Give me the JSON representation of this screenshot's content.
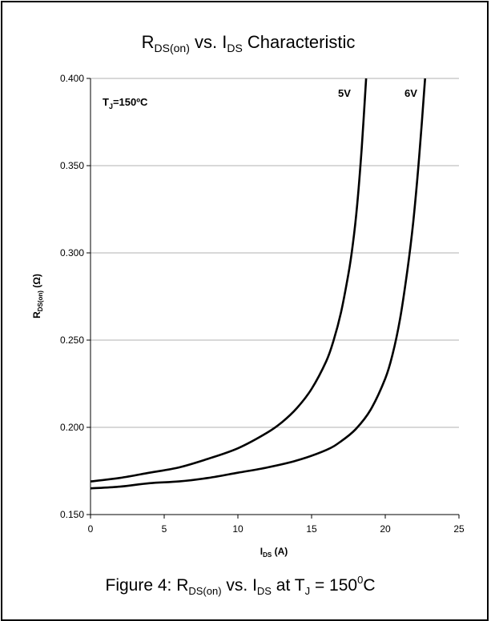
{
  "chart_data": {
    "type": "line",
    "title": {
      "main": "R",
      "sub": "DS(on)",
      "mid": " vs. I",
      "sub2": "DS",
      "tail": " Characteristic"
    },
    "ylabel": {
      "main": "R",
      "sub": "DS(on)",
      "tail": " (Ω)"
    },
    "xlabel": {
      "main": "I",
      "sub": "DS",
      "tail": " (A)"
    },
    "xlim": [
      0,
      25
    ],
    "ylim": [
      0.15,
      0.4
    ],
    "xticks": [
      "0",
      "5",
      "10",
      "15",
      "20",
      "25"
    ],
    "yticks": [
      "0.150",
      "0.200",
      "0.250",
      "0.300",
      "0.350",
      "0.400"
    ],
    "grid": "horizontal",
    "annotation": {
      "main": "T",
      "sub": "J",
      "tail": "=150ºC"
    },
    "series": [
      {
        "name": "5V",
        "x": [
          0,
          2,
          4,
          6,
          8,
          10,
          12,
          13,
          14,
          15,
          16,
          16.5,
          17,
          17.5,
          17.8,
          18.1,
          18.4,
          18.7
        ],
        "y": [
          0.169,
          0.171,
          0.174,
          0.177,
          0.182,
          0.188,
          0.197,
          0.203,
          0.211,
          0.222,
          0.238,
          0.25,
          0.266,
          0.288,
          0.305,
          0.328,
          0.36,
          0.4
        ]
      },
      {
        "name": "6V",
        "x": [
          0,
          2,
          4,
          6,
          8,
          10,
          12,
          14,
          16,
          17,
          18,
          19,
          20,
          20.5,
          21,
          21.5,
          21.9,
          22.3,
          22.7
        ],
        "y": [
          0.165,
          0.166,
          0.168,
          0.169,
          0.171,
          0.174,
          0.177,
          0.181,
          0.187,
          0.192,
          0.199,
          0.21,
          0.228,
          0.242,
          0.262,
          0.29,
          0.318,
          0.355,
          0.4
        ]
      }
    ]
  },
  "caption": {
    "pre": "Figure 4: R",
    "sub1": "DS(on)",
    "mid": " vs. I",
    "sub2": "DS",
    "mid2": "  at T",
    "sub3": "J",
    "mid3": " = 150",
    "sup": "0",
    "tail": "C"
  }
}
